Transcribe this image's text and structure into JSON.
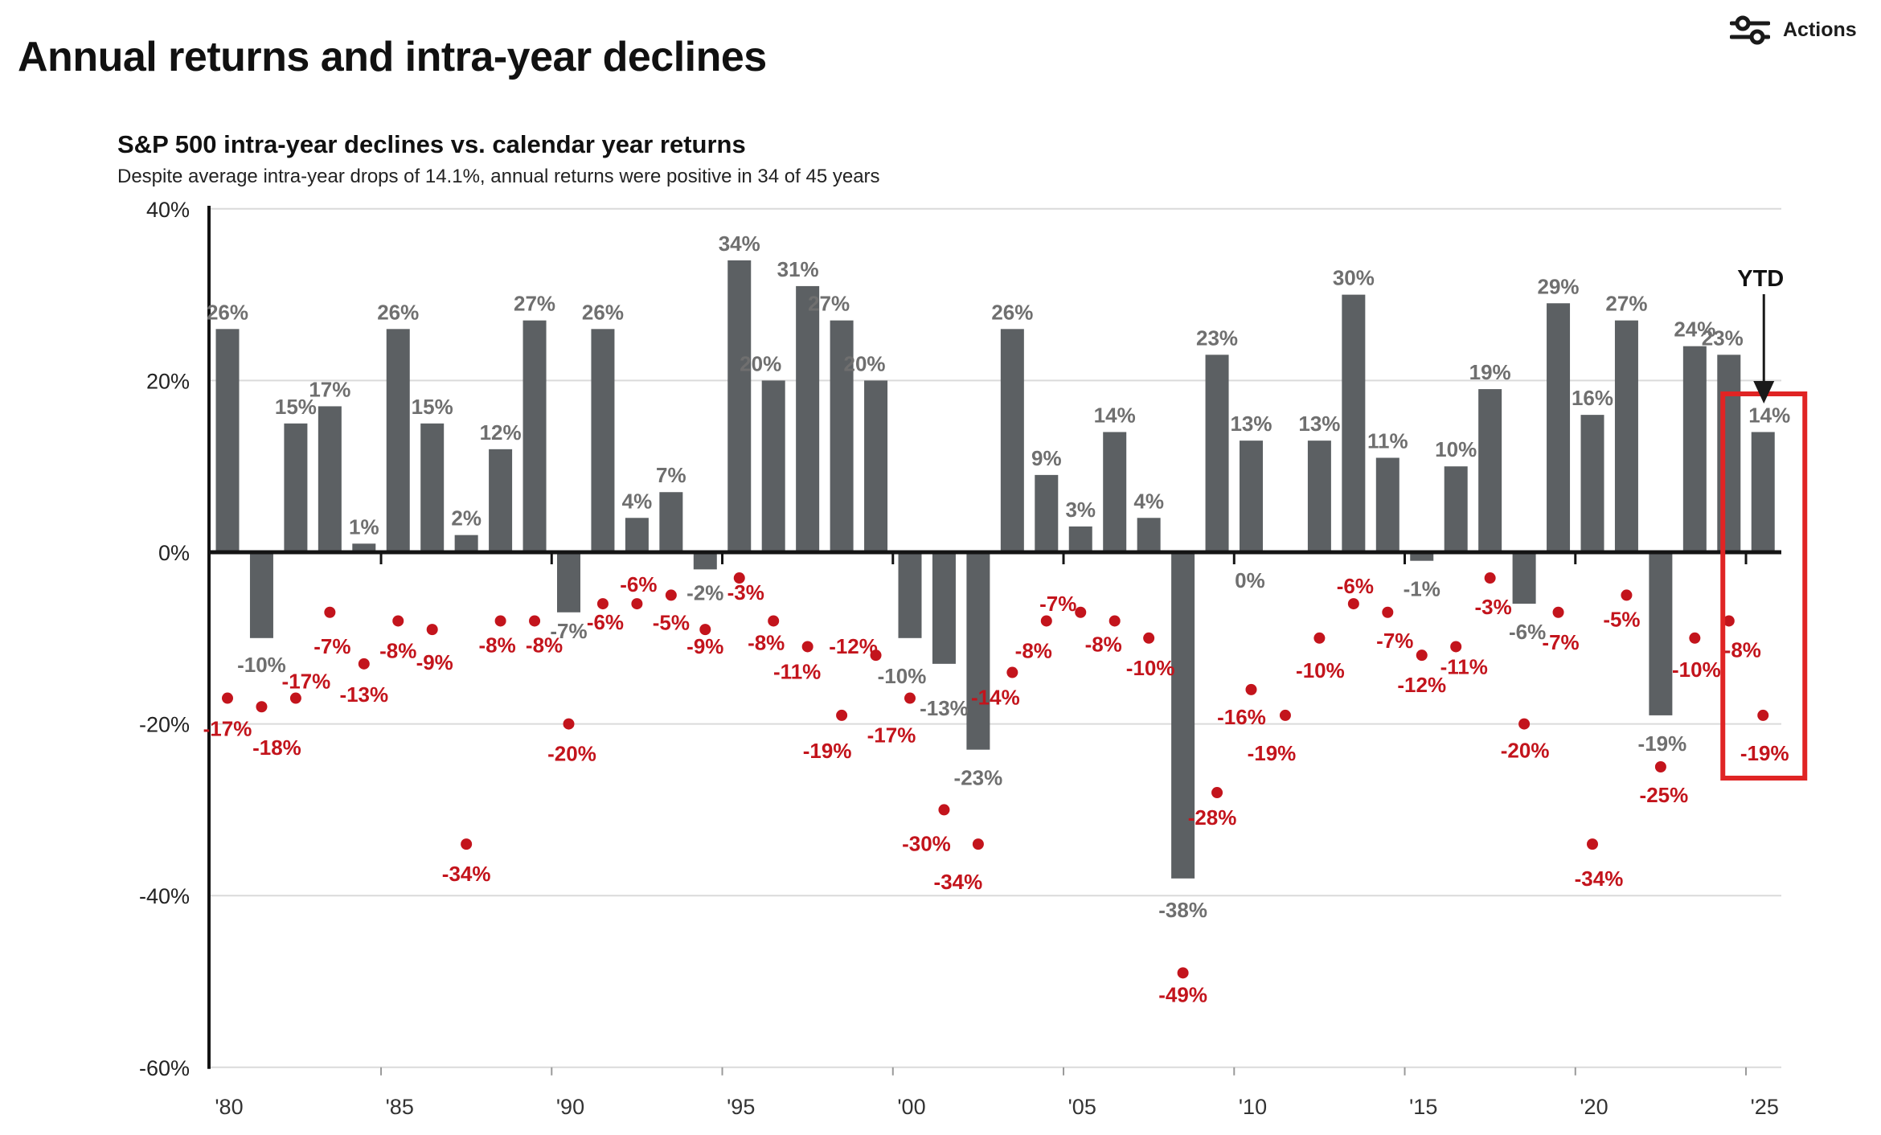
{
  "page": {
    "title": "Annual returns and intra-year declines",
    "actions_label": "Actions"
  },
  "chart": {
    "title": "S&P 500 intra-year declines vs. calendar year returns",
    "subtitle": "Despite average intra-year drops of 14.1%, annual returns were positive in 34 of 45 years",
    "ytd_label": "YTD"
  },
  "colors": {
    "bar": "#5c6063",
    "bar_label": "#6f6f6f",
    "decline": "#c3141c",
    "highlight_box": "#e02424",
    "axis": "#141414",
    "axis_text": "#222222",
    "gridline": "#dadada"
  },
  "chart_data": {
    "type": "bar+scatter",
    "title": "S&P 500 intra-year declines vs. calendar year returns",
    "subtitle": "Despite average intra-year drops of 14.1%, annual returns were positive in 34 of 45 years",
    "x": [
      1980,
      1981,
      1982,
      1983,
      1984,
      1985,
      1986,
      1987,
      1988,
      1989,
      1990,
      1991,
      1992,
      1993,
      1994,
      1995,
      1996,
      1997,
      1998,
      1999,
      2000,
      2001,
      2002,
      2003,
      2004,
      2005,
      2006,
      2007,
      2008,
      2009,
      2010,
      2011,
      2012,
      2013,
      2014,
      2015,
      2016,
      2017,
      2018,
      2019,
      2020,
      2021,
      2022,
      2023,
      2024,
      2025
    ],
    "series": [
      {
        "name": "Calendar year return",
        "type": "bar",
        "values": [
          26,
          -10,
          15,
          17,
          1,
          26,
          15,
          2,
          12,
          27,
          -7,
          26,
          4,
          7,
          -2,
          34,
          20,
          31,
          27,
          20,
          -10,
          -13,
          -23,
          26,
          9,
          3,
          14,
          4,
          -38,
          23,
          13,
          0,
          13,
          30,
          11,
          -1,
          10,
          19,
          -6,
          29,
          16,
          27,
          -19,
          24,
          23,
          14
        ]
      },
      {
        "name": "Intra-year decline",
        "type": "scatter",
        "values": [
          -17,
          -18,
          -17,
          -7,
          -13,
          -8,
          -9,
          -34,
          -8,
          -8,
          -20,
          -6,
          -6,
          -5,
          -9,
          -3,
          -8,
          -11,
          -19,
          -12,
          -17,
          -30,
          -34,
          -14,
          -8,
          -7,
          -8,
          -10,
          -49,
          -28,
          -16,
          -19,
          -10,
          -6,
          -7,
          -12,
          -11,
          -3,
          -20,
          -7,
          -34,
          -5,
          -25,
          -10,
          -8,
          -19
        ]
      }
    ],
    "x_tick_labels": [
      "'80",
      "'85",
      "'90",
      "'95",
      "'00",
      "'05",
      "'10",
      "'15",
      "'20",
      "'25"
    ],
    "x_tick_years": [
      1980,
      1985,
      1990,
      1995,
      2000,
      2005,
      2010,
      2015,
      2020,
      2025
    ],
    "y_tick_labels": [
      "40%",
      "20%",
      "0%",
      "-20%",
      "-40%",
      "-60%"
    ],
    "y_ticks_percent": [
      40,
      20,
      0,
      -20,
      -40,
      -60
    ],
    "ylim": [
      -60,
      40
    ],
    "grid": true,
    "highlight_year": 2025,
    "ytd_annotation": "YTD",
    "ytd_value": 14,
    "ytd_decline": -19
  }
}
